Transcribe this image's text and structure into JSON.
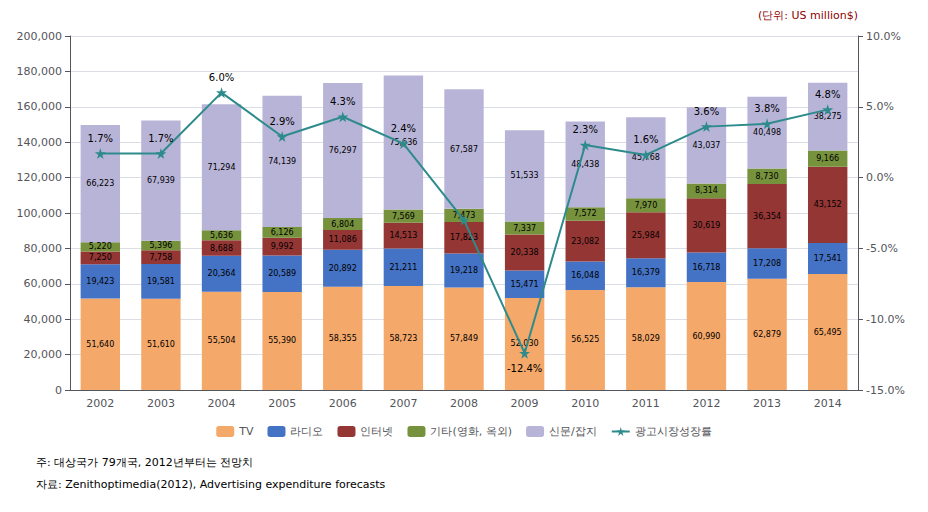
{
  "chart_data": {
    "type": "bar",
    "stacked": true,
    "categories": [
      "2002",
      "2003",
      "2004",
      "2005",
      "2006",
      "2007",
      "2008",
      "2009",
      "2010",
      "2011",
      "2012",
      "2013",
      "2014"
    ],
    "series": [
      {
        "name": "TV",
        "color": "#F4A86A",
        "data_labels": true,
        "values": [
          51640,
          51610,
          55504,
          55390,
          58355,
          58723,
          57849,
          52030,
          56525,
          58029,
          60990,
          62879,
          65495
        ],
        "value_labels": [
          "51,640",
          "51,610",
          "55,504",
          "55,390",
          "58,355",
          "58,723",
          "57,849",
          "52,030",
          "56,525",
          "58,029",
          "60,990",
          "62,879",
          "65,495"
        ]
      },
      {
        "name": "라디오",
        "color": "#4472C4",
        "data_labels": true,
        "values": [
          19423,
          19581,
          20364,
          20589,
          20892,
          21211,
          19218,
          15471,
          16048,
          16379,
          16718,
          17208,
          17541
        ],
        "value_labels": [
          "19,423",
          "19,581",
          "20,364",
          "20,589",
          "20,892",
          "21,211",
          "19,218",
          "15,471",
          "16,048",
          "16,379",
          "16,718",
          "17,208",
          "17,541"
        ]
      },
      {
        "name": "인터넷",
        "color": "#943634",
        "data_labels": true,
        "values": [
          7250,
          7758,
          8688,
          9992,
          11086,
          14513,
          17823,
          20338,
          23082,
          25984,
          30619,
          36354,
          43152
        ],
        "value_labels": [
          "7,250",
          "7,758",
          "8,688",
          "9,992",
          "11,086",
          "14,513",
          "17,823",
          "20,338",
          "23,082",
          "25,984",
          "30,619",
          "36,354",
          "43,152"
        ]
      },
      {
        "name": "기타(영화, 옥외)",
        "color": "#76923C",
        "data_labels": true,
        "values": [
          5220,
          5396,
          5636,
          6126,
          6804,
          7569,
          7473,
          7337,
          7572,
          7970,
          8314,
          8730,
          9166
        ],
        "value_labels": [
          "5,220",
          "5,396",
          "5,636",
          "6,126",
          "6,804",
          "7,569",
          "7,473",
          "7,337",
          "7,572",
          "7,970",
          "8,314",
          "8,730",
          "9,166"
        ]
      },
      {
        "name": "신문/잡지",
        "color": "#B8B4D8",
        "data_labels": true,
        "values": [
          66223,
          67939,
          71294,
          74139,
          76297,
          75636,
          67587,
          51533,
          48438,
          45768,
          43037,
          40498,
          38275
        ],
        "value_labels": [
          "66,223",
          "67,939",
          "71,294",
          "74,139",
          "76,297",
          "75,636",
          "67,587",
          "51,533",
          "48,438",
          "45,768",
          "43,037",
          "40,498",
          "38,275"
        ]
      },
      {
        "name": "광고시장성장률",
        "type": "line",
        "axis": "y2",
        "color": "#2E8B8B",
        "marker": "star",
        "data_labels": true,
        "values": [
          1.7,
          1.7,
          6.0,
          2.9,
          4.3,
          2.4,
          -3.0,
          -12.4,
          2.3,
          1.6,
          3.6,
          3.8,
          4.8
        ],
        "value_labels": [
          "1.7%",
          "1.7%",
          "6.0%",
          "2.9%",
          "4.3%",
          "2.4%",
          null,
          "-12.4%",
          "2.3%",
          "1.6%",
          "3.6%",
          "3.8%",
          "4.8%"
        ]
      }
    ],
    "ylim": [
      0,
      200000
    ],
    "yticks": [
      0,
      {
        "value": 20000,
        "label": "20,000"
      },
      {
        "value": 40000,
        "label": "40,000"
      },
      {
        "value": 60000,
        "label": "60,000"
      },
      {
        "value": 80000,
        "label": "80,000"
      },
      {
        "value": 100000,
        "label": "100,000"
      },
      {
        "value": 120000,
        "label": "120,000"
      },
      {
        "value": 140000,
        "label": "140,000"
      },
      {
        "value": 160000,
        "label": "160,000"
      },
      {
        "value": 180000,
        "label": "180,000"
      },
      {
        "value": 200000,
        "label": "200,000"
      }
    ],
    "y2lim": [
      -15.0,
      10.0
    ],
    "y2ticks": [
      {
        "value": -15.0,
        "label": "-15.0%"
      },
      {
        "value": -10.0,
        "label": "-10.0%"
      },
      {
        "value": -5.0,
        "label": "-5.0%"
      },
      {
        "value": 0.0,
        "label": "0.0%"
      },
      {
        "value": 5.0,
        "label": "5.0%"
      },
      {
        "value": 10.0,
        "label": "10.0%"
      }
    ],
    "grid": true,
    "legend": "bottom",
    "annotations": [
      "(단위: US million$)",
      "주: 대상국가 79개국, 2012년부터는 전망치",
      "자료: Zenithoptimedia(2012), Advertising expenditure forecasts"
    ]
  }
}
